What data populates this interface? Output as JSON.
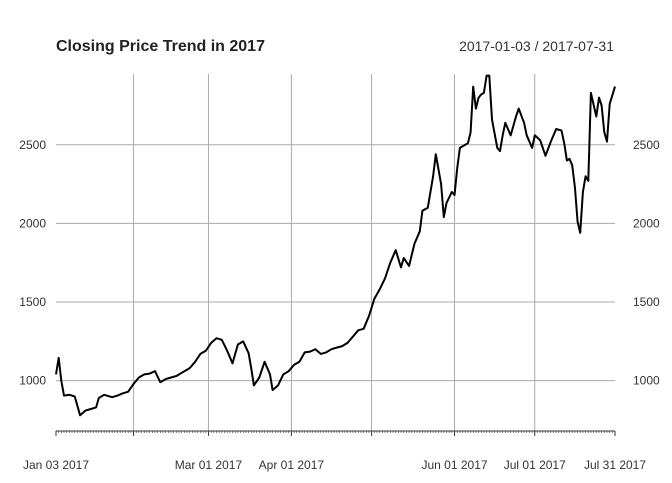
{
  "chart_data": {
    "type": "line",
    "title": "Closing Price Trend in 2017",
    "date_range_label": "2017-01-03 / 2017-07-31",
    "xlabel": "",
    "ylabel": "",
    "xlim": [
      "2017-01-03",
      "2017-07-31"
    ],
    "ylim": [
      680,
      2950
    ],
    "grid": true,
    "legend": "none",
    "y_ticks": [
      1000,
      1500,
      2000,
      2500
    ],
    "y_tick_labels": [
      "1000",
      "1500",
      "2000",
      "2500"
    ],
    "x_ticks": [
      {
        "date": "2017-01-03",
        "label": "Jan 03 2017"
      },
      {
        "date": "2017-02-01",
        "label": ""
      },
      {
        "date": "2017-03-01",
        "label": "Mar 01 2017"
      },
      {
        "date": "2017-04-01",
        "label": "Apr 01 2017"
      },
      {
        "date": "2017-05-01",
        "label": ""
      },
      {
        "date": "2017-06-01",
        "label": "Jun 01 2017"
      },
      {
        "date": "2017-07-01",
        "label": "Jul 01 2017"
      },
      {
        "date": "2017-07-31",
        "label": "Jul 31 2017"
      }
    ],
    "line_color": "#000000",
    "grid_color": "#aaaaaa",
    "series": [
      {
        "x": [
          "2017-01-03",
          "2017-01-04",
          "2017-01-05",
          "2017-01-06",
          "2017-01-08",
          "2017-01-10",
          "2017-01-12",
          "2017-01-14",
          "2017-01-16",
          "2017-01-18",
          "2017-01-19",
          "2017-01-21",
          "2017-01-24",
          "2017-01-26",
          "2017-01-28",
          "2017-01-30",
          "2017-02-01",
          "2017-02-03",
          "2017-02-05",
          "2017-02-07",
          "2017-02-09",
          "2017-02-11",
          "2017-02-13",
          "2017-02-15",
          "2017-02-17",
          "2017-02-19",
          "2017-02-22",
          "2017-02-24",
          "2017-02-26",
          "2017-02-28",
          "2017-03-02",
          "2017-03-04",
          "2017-03-06",
          "2017-03-08",
          "2017-03-10",
          "2017-03-12",
          "2017-03-14",
          "2017-03-16",
          "2017-03-17",
          "2017-03-18",
          "2017-03-20",
          "2017-03-22",
          "2017-03-24",
          "2017-03-25",
          "2017-03-27",
          "2017-03-29",
          "2017-03-31",
          "2017-04-02",
          "2017-04-04",
          "2017-04-06",
          "2017-04-08",
          "2017-04-10",
          "2017-04-12",
          "2017-04-14",
          "2017-04-16",
          "2017-04-18",
          "2017-04-20",
          "2017-04-22",
          "2017-04-24",
          "2017-04-26",
          "2017-04-28",
          "2017-04-30",
          "2017-05-02",
          "2017-05-04",
          "2017-05-06",
          "2017-05-08",
          "2017-05-10",
          "2017-05-12",
          "2017-05-13",
          "2017-05-15",
          "2017-05-17",
          "2017-05-19",
          "2017-05-20",
          "2017-05-22",
          "2017-05-24",
          "2017-05-25",
          "2017-05-27",
          "2017-05-28",
          "2017-05-29",
          "2017-05-31",
          "2017-06-01",
          "2017-06-02",
          "2017-06-03",
          "2017-06-05",
          "2017-06-06",
          "2017-06-07",
          "2017-06-08",
          "2017-06-09",
          "2017-06-10",
          "2017-06-11",
          "2017-06-12",
          "2017-06-13",
          "2017-06-14",
          "2017-06-15",
          "2017-06-17",
          "2017-06-18",
          "2017-06-19",
          "2017-06-20",
          "2017-06-22",
          "2017-06-24",
          "2017-06-25",
          "2017-06-27",
          "2017-06-28",
          "2017-06-30",
          "2017-07-01",
          "2017-07-03",
          "2017-07-05",
          "2017-07-07",
          "2017-07-09",
          "2017-07-11",
          "2017-07-12",
          "2017-07-13",
          "2017-07-14",
          "2017-07-15",
          "2017-07-16",
          "2017-07-17",
          "2017-07-18",
          "2017-07-19",
          "2017-07-20",
          "2017-07-21",
          "2017-07-22",
          "2017-07-24",
          "2017-07-25",
          "2017-07-26",
          "2017-07-27",
          "2017-07-28",
          "2017-07-29",
          "2017-07-31"
        ],
        "values": [
          1040,
          1145,
          1000,
          905,
          910,
          900,
          780,
          810,
          820,
          830,
          890,
          910,
          895,
          905,
          920,
          930,
          980,
          1020,
          1040,
          1045,
          1060,
          990,
          1010,
          1020,
          1030,
          1050,
          1080,
          1120,
          1170,
          1190,
          1240,
          1270,
          1260,
          1190,
          1110,
          1230,
          1250,
          1175,
          1080,
          970,
          1020,
          1120,
          1040,
          940,
          970,
          1040,
          1060,
          1100,
          1120,
          1180,
          1185,
          1200,
          1170,
          1180,
          1200,
          1210,
          1220,
          1240,
          1280,
          1320,
          1330,
          1410,
          1520,
          1580,
          1650,
          1750,
          1830,
          1720,
          1780,
          1730,
          1870,
          1950,
          2080,
          2100,
          2300,
          2440,
          2250,
          2040,
          2130,
          2200,
          2180,
          2350,
          2480,
          2500,
          2510,
          2580,
          2870,
          2730,
          2800,
          2820,
          2830,
          2940,
          2940,
          2660,
          2480,
          2460,
          2560,
          2640,
          2560,
          2680,
          2730,
          2640,
          2560,
          2480,
          2560,
          2530,
          2430,
          2520,
          2600,
          2590,
          2510,
          2400,
          2410,
          2370,
          2230,
          2010,
          1940,
          2200,
          2300,
          2270,
          2830,
          2680,
          2800,
          2750,
          2580,
          2520,
          2760,
          2870
        ]
      }
    ]
  }
}
